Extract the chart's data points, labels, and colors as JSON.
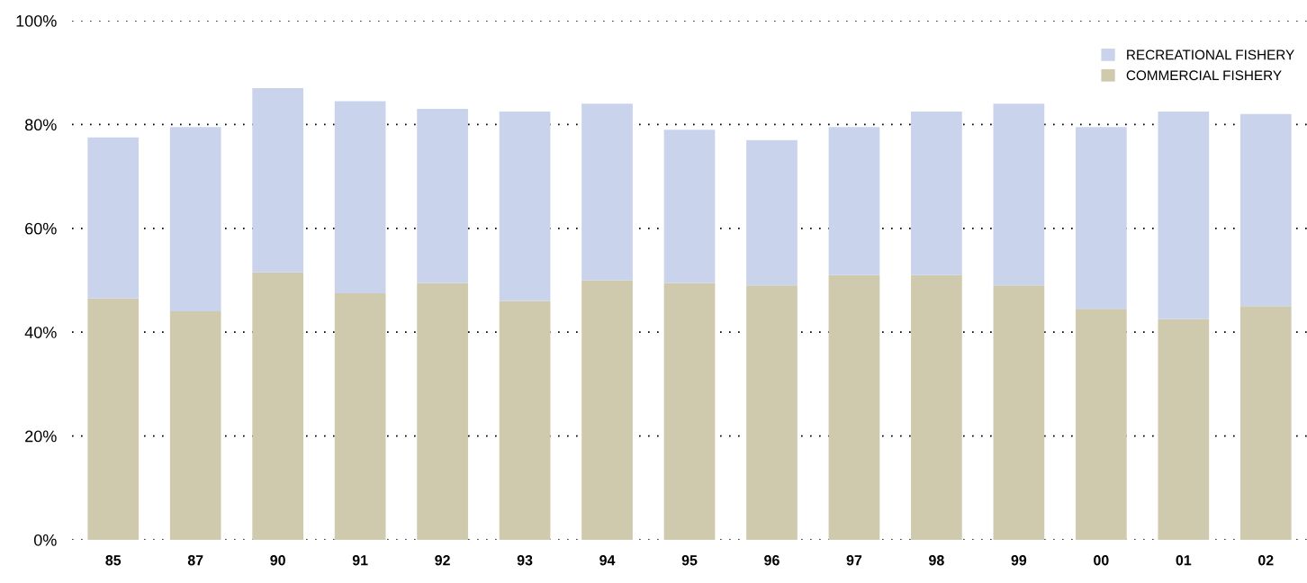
{
  "chart_data": {
    "type": "bar",
    "stacked": true,
    "categories": [
      "85",
      "87",
      "90",
      "91",
      "92",
      "93",
      "94",
      "95",
      "96",
      "97",
      "98",
      "99",
      "00",
      "01",
      "02"
    ],
    "series": [
      {
        "name": "COMMERCIAL FISHERY",
        "color": "#cfcaad",
        "values": [
          46.5,
          44,
          51.5,
          47.5,
          49.5,
          46,
          50,
          49.5,
          49,
          51,
          51,
          49,
          44.5,
          42.5,
          45
        ]
      },
      {
        "name": "RECREATIONAL FISHERY",
        "color": "#c9d3ec",
        "values": [
          31,
          35.5,
          35.5,
          37,
          33.5,
          36.5,
          34,
          29.5,
          28,
          28.5,
          31.5,
          35,
          35,
          40,
          37
        ]
      }
    ],
    "ylim": [
      0,
      100
    ],
    "yticks": [
      {
        "value": 0,
        "label": "0%"
      },
      {
        "value": 20,
        "label": "20%"
      },
      {
        "value": 40,
        "label": "40%"
      },
      {
        "value": 60,
        "label": "60%"
      },
      {
        "value": 80,
        "label": "80%"
      },
      {
        "value": 100,
        "label": "100%"
      }
    ],
    "grid": "y",
    "legend": "top right"
  }
}
